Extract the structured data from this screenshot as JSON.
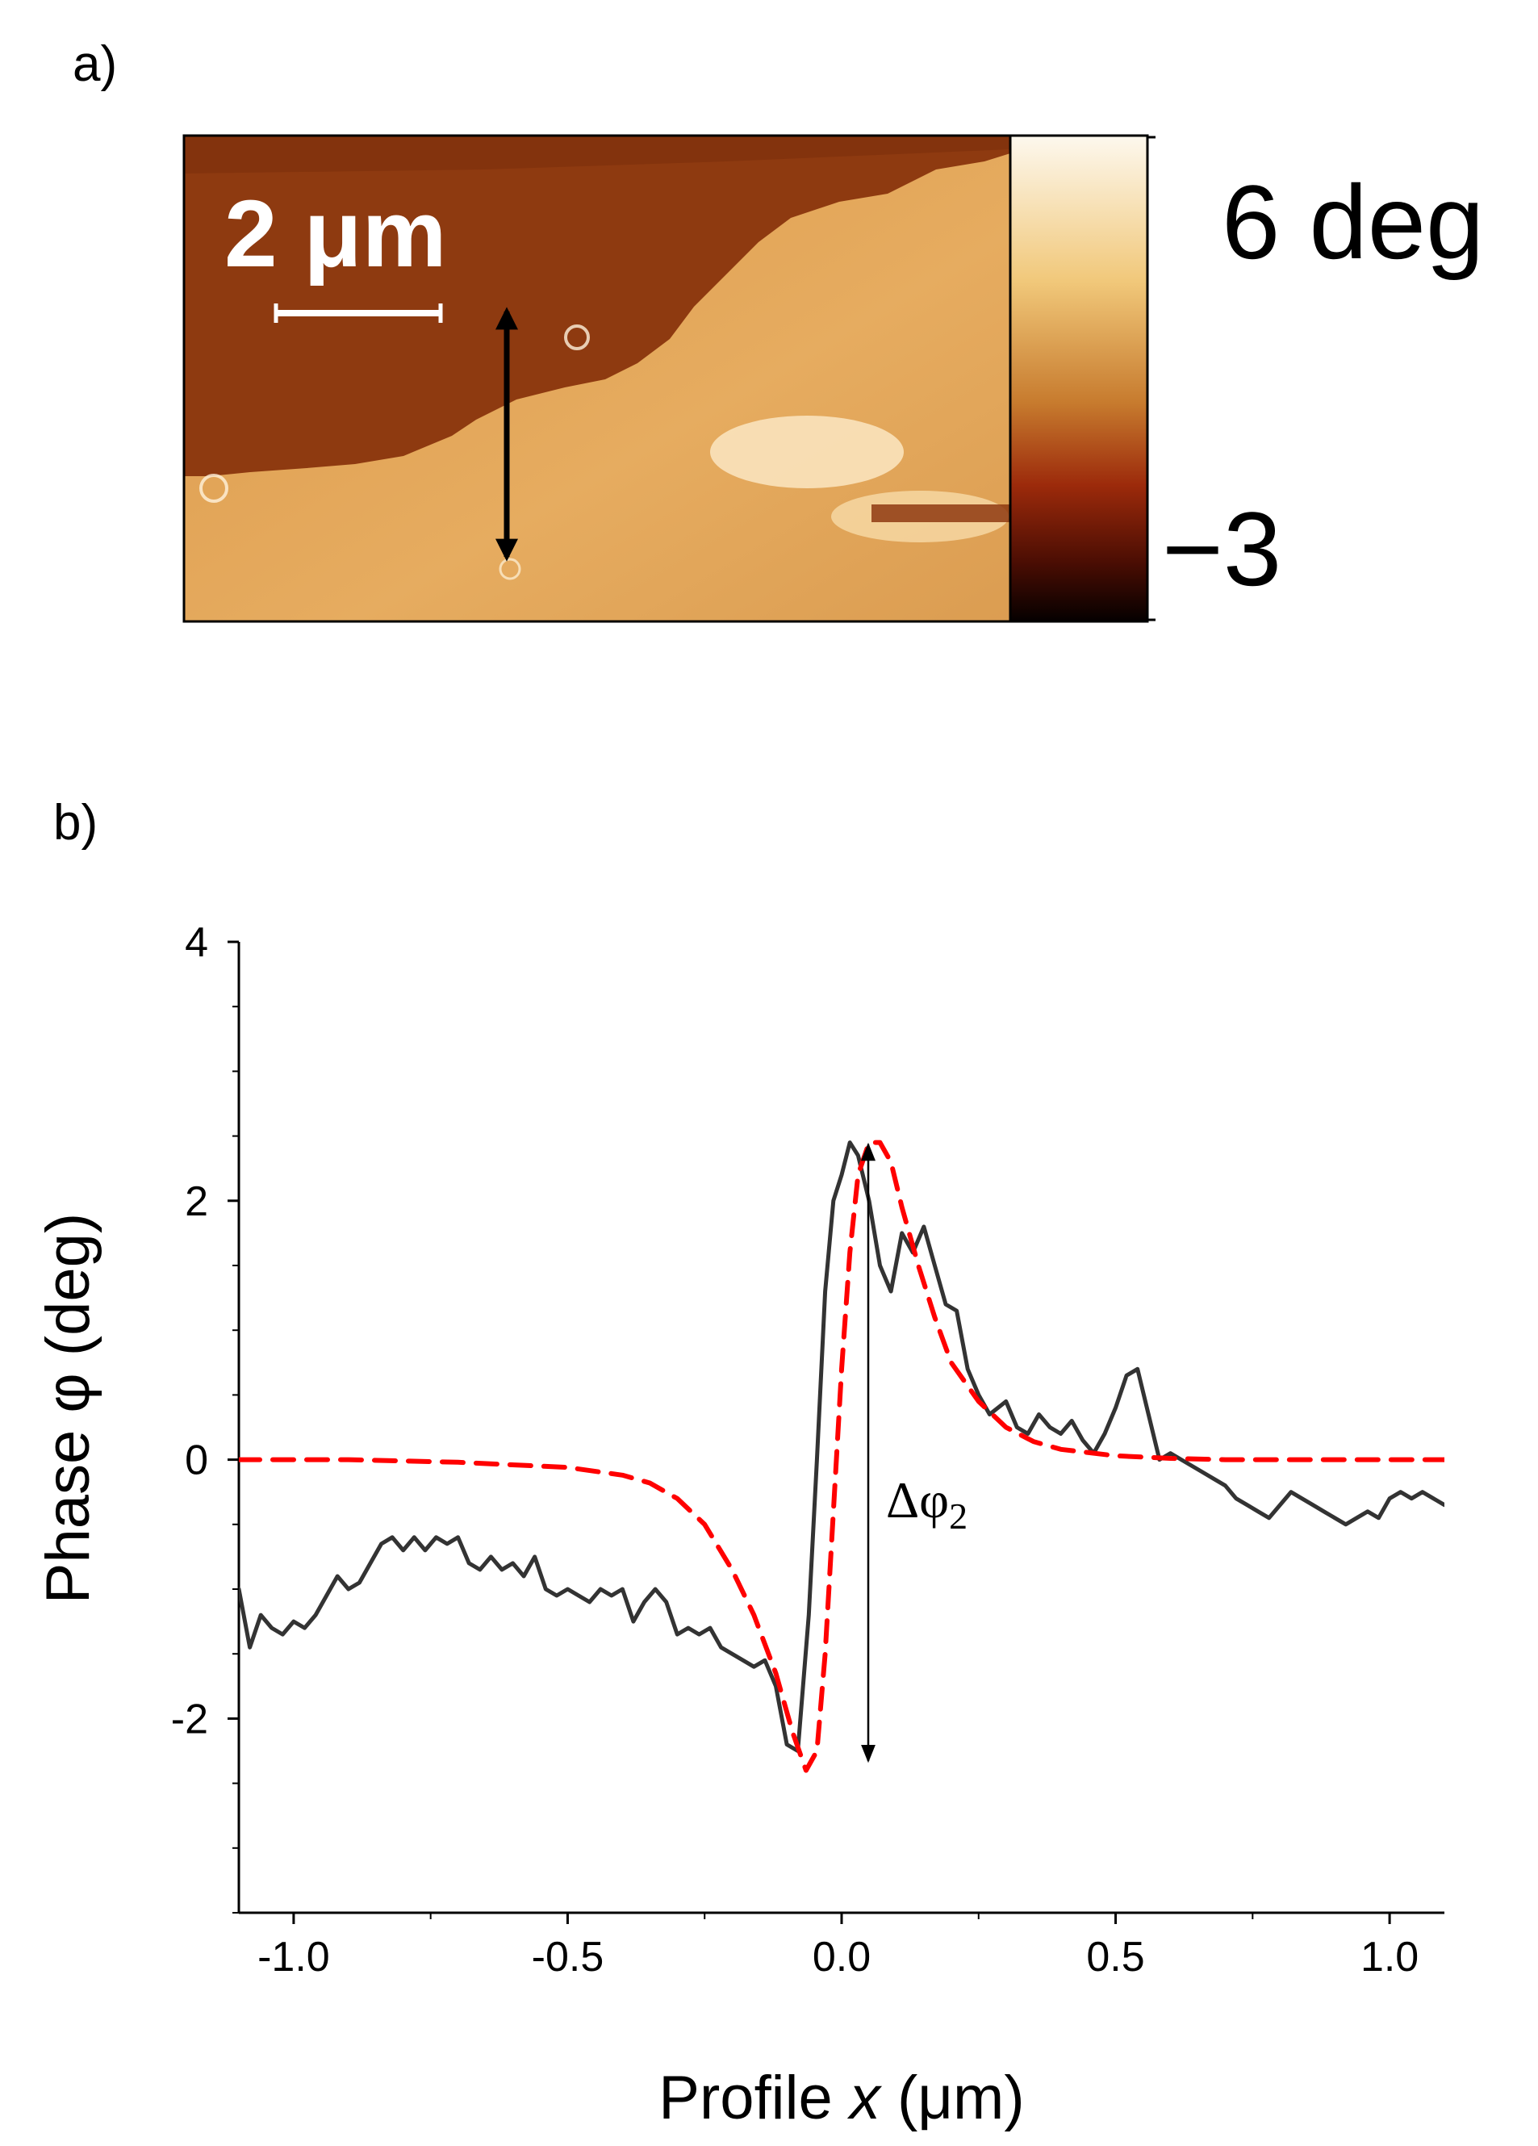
{
  "panel_a": {
    "label": "a)",
    "scale_bar_label": "2 μm",
    "colorbar_max_label": "6 deg",
    "colorbar_min_label": "−3",
    "colorbar_colors": [
      "#fdf8ee",
      "#f1c87a",
      "#c77b2e",
      "#9c2a0b",
      "#4a0d03",
      "#050000"
    ],
    "image_colors": {
      "dark_domain": "#8e3a10",
      "light_domain": "#e0a150",
      "highlight": "#fbe6c2"
    }
  },
  "panel_b": {
    "label": "b)",
    "annotation": "Δφ",
    "annotation_subscript": "2",
    "line_colors": {
      "measured": "#333333",
      "model": "#ff0000"
    }
  },
  "chart_data": {
    "type": "line",
    "xlabel_prefix": "Profile ",
    "xlabel_var": "x",
    "xlabel_suffix": " (μm)",
    "ylabel": "Phase φ (deg)",
    "xlim": [
      -1.1,
      1.1
    ],
    "ylim": [
      -3.5,
      4
    ],
    "xticks": [
      -1.0,
      -0.5,
      0.0,
      0.5,
      1.0
    ],
    "xtick_labels": [
      "-1.0",
      "-0.5",
      "0.0",
      "0.5",
      "1.0"
    ],
    "yticks": [
      -2,
      0,
      2,
      4
    ],
    "ytick_labels": [
      "-2",
      "0",
      "2",
      "4"
    ],
    "grid": false,
    "series": [
      {
        "style": "solid",
        "x": [
          -1.1,
          -1.08,
          -1.06,
          -1.04,
          -1.02,
          -1.0,
          -0.98,
          -0.96,
          -0.94,
          -0.92,
          -0.9,
          -0.88,
          -0.86,
          -0.84,
          -0.82,
          -0.8,
          -0.78,
          -0.76,
          -0.74,
          -0.72,
          -0.7,
          -0.68,
          -0.66,
          -0.64,
          -0.62,
          -0.6,
          -0.58,
          -0.56,
          -0.54,
          -0.52,
          -0.5,
          -0.48,
          -0.46,
          -0.44,
          -0.42,
          -0.4,
          -0.38,
          -0.36,
          -0.34,
          -0.32,
          -0.3,
          -0.28,
          -0.26,
          -0.24,
          -0.22,
          -0.2,
          -0.18,
          -0.16,
          -0.14,
          -0.12,
          -0.1,
          -0.08,
          -0.06,
          -0.045,
          -0.03,
          -0.015,
          0.0,
          0.015,
          0.03,
          0.05,
          0.07,
          0.09,
          0.11,
          0.13,
          0.15,
          0.17,
          0.19,
          0.21,
          0.23,
          0.25,
          0.27,
          0.3,
          0.32,
          0.34,
          0.36,
          0.38,
          0.4,
          0.42,
          0.44,
          0.46,
          0.48,
          0.5,
          0.52,
          0.54,
          0.56,
          0.58,
          0.6,
          0.62,
          0.64,
          0.66,
          0.68,
          0.7,
          0.72,
          0.74,
          0.76,
          0.78,
          0.8,
          0.82,
          0.84,
          0.86,
          0.88,
          0.9,
          0.92,
          0.94,
          0.96,
          0.98,
          1.0,
          1.02,
          1.04,
          1.06,
          1.08,
          1.1
        ],
        "y": [
          -1.0,
          -1.45,
          -1.2,
          -1.3,
          -1.35,
          -1.25,
          -1.3,
          -1.2,
          -1.05,
          -0.9,
          -1.0,
          -0.95,
          -0.8,
          -0.65,
          -0.6,
          -0.7,
          -0.6,
          -0.7,
          -0.6,
          -0.65,
          -0.6,
          -0.8,
          -0.85,
          -0.75,
          -0.85,
          -0.8,
          -0.9,
          -0.75,
          -1.0,
          -1.05,
          -1.0,
          -1.05,
          -1.1,
          -1.0,
          -1.05,
          -1.0,
          -1.25,
          -1.1,
          -1.0,
          -1.1,
          -1.35,
          -1.3,
          -1.35,
          -1.3,
          -1.45,
          -1.5,
          -1.55,
          -1.6,
          -1.55,
          -1.75,
          -2.2,
          -2.25,
          -1.2,
          0.0,
          1.3,
          2.0,
          2.2,
          2.45,
          2.35,
          2.0,
          1.5,
          1.3,
          1.75,
          1.6,
          1.8,
          1.5,
          1.2,
          1.15,
          0.7,
          0.5,
          0.35,
          0.45,
          0.25,
          0.2,
          0.35,
          0.25,
          0.2,
          0.3,
          0.15,
          0.05,
          0.2,
          0.4,
          0.65,
          0.7,
          0.35,
          0.0,
          0.05,
          0.0,
          -0.05,
          -0.1,
          -0.15,
          -0.2,
          -0.3,
          -0.35,
          -0.4,
          -0.45,
          -0.35,
          -0.25,
          -0.3,
          -0.35,
          -0.4,
          -0.45,
          -0.5,
          -0.45,
          -0.4,
          -0.45,
          -0.3,
          -0.25,
          -0.3,
          -0.25,
          -0.3,
          -0.35
        ]
      },
      {
        "style": "dashed",
        "x": [
          -1.1,
          -0.9,
          -0.7,
          -0.5,
          -0.4,
          -0.35,
          -0.3,
          -0.25,
          -0.2,
          -0.16,
          -0.12,
          -0.09,
          -0.065,
          -0.045,
          -0.03,
          -0.015,
          0.0,
          0.015,
          0.03,
          0.05,
          0.07,
          0.09,
          0.11,
          0.14,
          0.17,
          0.2,
          0.25,
          0.3,
          0.35,
          0.4,
          0.5,
          0.6,
          0.7,
          0.8,
          0.9,
          1.0,
          1.1
        ],
        "y": [
          0.0,
          0.0,
          -0.02,
          -0.06,
          -0.12,
          -0.18,
          -0.3,
          -0.5,
          -0.85,
          -1.2,
          -1.65,
          -2.1,
          -2.4,
          -2.25,
          -1.5,
          -0.4,
          0.7,
          1.6,
          2.2,
          2.45,
          2.45,
          2.3,
          1.95,
          1.5,
          1.1,
          0.75,
          0.45,
          0.25,
          0.14,
          0.08,
          0.03,
          0.01,
          0.0,
          0.0,
          0.0,
          0.0,
          0.0
        ]
      }
    ]
  }
}
